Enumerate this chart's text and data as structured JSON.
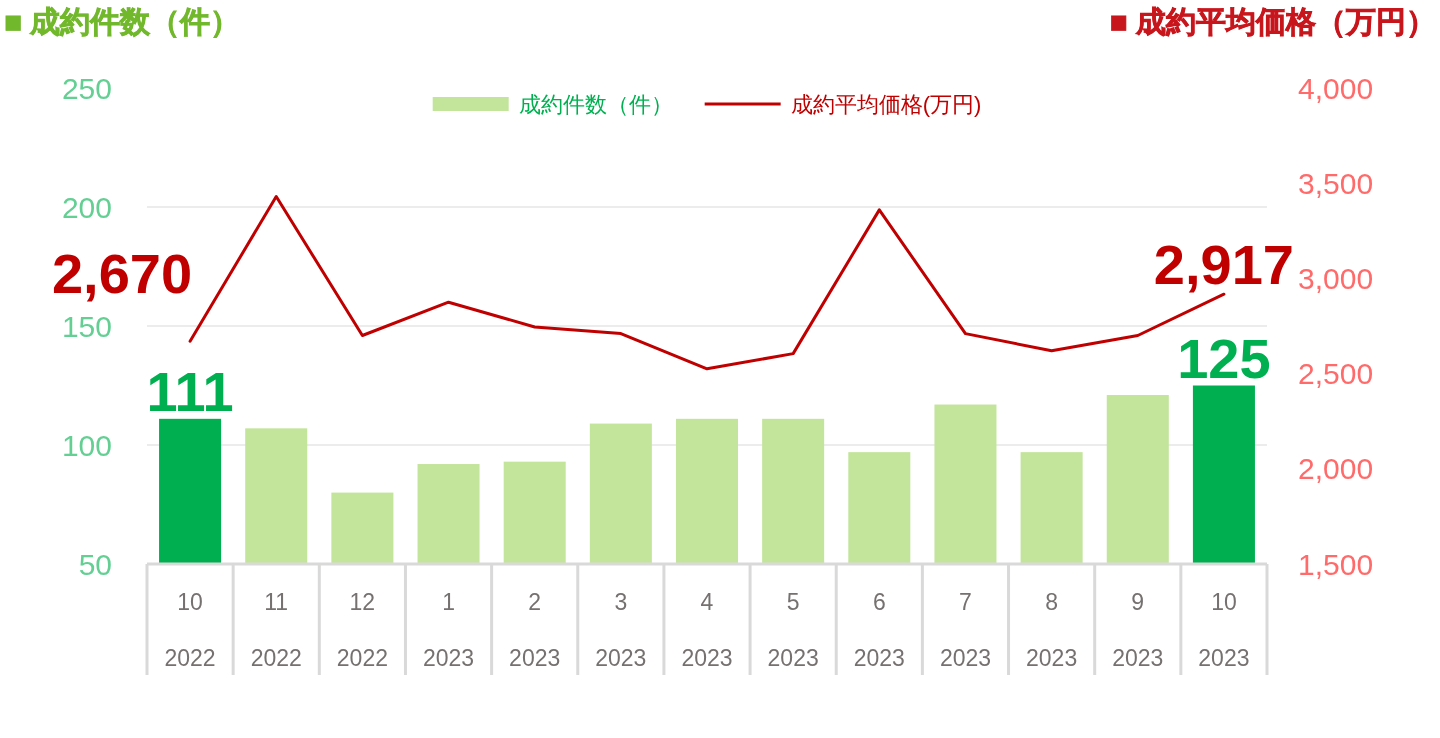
{
  "chart_data": {
    "type": "bar",
    "ylabel": "■ 成約件数（件）",
    "y2label": "■ 成約平均価格（万円）",
    "categories": [
      "10\n2022",
      "11\n2022",
      "12\n2022",
      "1\n2023",
      "2\n2023",
      "3\n2023",
      "4\n2023",
      "5\n2023",
      "6\n2023",
      "7\n2023",
      "8\n2023",
      "9\n2023",
      "10\n2023"
    ],
    "series": [
      {
        "name": "成約件数（件）",
        "color": "#c3e59b",
        "colors": [
          "#00b050",
          "#c3e59b",
          "#c3e59b",
          "#c3e59b",
          "#c3e59b",
          "#c3e59b",
          "#c3e59b",
          "#c3e59b",
          "#c3e59b",
          "#c3e59b",
          "#c3e59b",
          "#c3e59b",
          "#00b050"
        ],
        "values": [
          111,
          107,
          80,
          92,
          93,
          109,
          111,
          111,
          97,
          117,
          97,
          121,
          125
        ],
        "value_labels": [
          "111",
          null,
          null,
          null,
          null,
          null,
          null,
          null,
          null,
          null,
          null,
          null,
          "125"
        ]
      },
      {
        "name": "成約平均価格(万円)",
        "type": "line",
        "axis": "y2",
        "color": "#c00000",
        "values": [
          2670,
          3430,
          2700,
          2875,
          2745,
          2710,
          2525,
          2605,
          3360,
          2710,
          2620,
          2700,
          2917
        ],
        "value_labels": [
          "2,670",
          null,
          null,
          null,
          null,
          null,
          null,
          null,
          null,
          null,
          null,
          null,
          "2,917"
        ]
      }
    ],
    "ylim": [
      50,
      250
    ],
    "yticks": [
      50,
      100,
      150,
      200,
      250
    ],
    "y2lim": [
      1500,
      4000
    ],
    "y2ticks": [
      {
        "value": 1500,
        "label": "1,500"
      },
      {
        "value": 2000,
        "label": "2,000"
      },
      {
        "value": 2500,
        "label": "2,500"
      },
      {
        "value": 3000,
        "label": "3,000"
      },
      {
        "value": 3500,
        "label": "3,500"
      },
      {
        "value": 4000,
        "label": "4,000"
      }
    ],
    "grid": "y",
    "legend": "top"
  }
}
